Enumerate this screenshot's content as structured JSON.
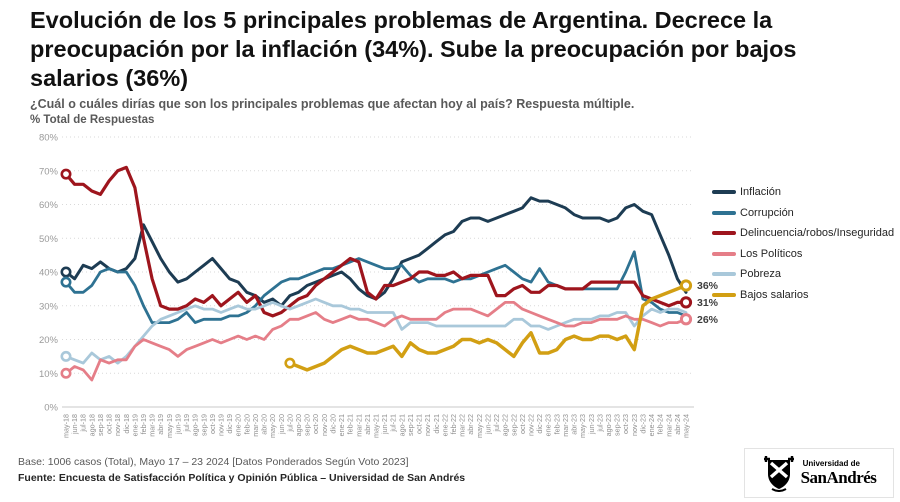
{
  "header": {
    "title": "Evolución de los 5 principales problemas de Argentina. Decrece la preocupación por la inflación (34%). Sube la preocupación por bajos salarios (36%)",
    "subtitle": "¿Cuál o cuáles dirías que son los principales problemas que afectan hoy al país? Respuesta múltiple.",
    "axis_note": "% Total de Respuestas"
  },
  "chart_data": {
    "type": "line",
    "ylim": [
      0,
      80
    ],
    "yticks": [
      "0%",
      "10%",
      "20%",
      "30%",
      "40%",
      "50%",
      "60%",
      "70%",
      "80%"
    ],
    "grid": "dotted-horizontal",
    "legend_position": "right",
    "x": [
      "may-18",
      "jun-18",
      "jul-18",
      "ago-18",
      "sep-18",
      "oct-18",
      "nov-18",
      "dic-18",
      "ene-19",
      "feb-19",
      "mar-19",
      "abr-19",
      "may-19",
      "jun-19",
      "jul-19",
      "ago-19",
      "sep-19",
      "oct-19",
      "nov-19",
      "dic-19",
      "ene-20",
      "feb-20",
      "mar-20",
      "abr-20",
      "may-20",
      "jun-20",
      "jul-20",
      "ago-20",
      "sep-20",
      "oct-20",
      "nov-20",
      "dic-20",
      "ene-21",
      "feb-21",
      "mar-21",
      "abr-21",
      "may-21",
      "jun-21",
      "jul-21",
      "ago-21",
      "sep-21",
      "oct-21",
      "nov-21",
      "dic-21",
      "ene-22",
      "feb-22",
      "mar-22",
      "abr-22",
      "may-22",
      "jun-22",
      "jul-22",
      "ago-22",
      "sep-22",
      "oct-22",
      "nov-22",
      "dic-22",
      "ene-23",
      "feb-23",
      "mar-23",
      "abr-23",
      "may-23",
      "jun-23",
      "jul-23",
      "ago-23",
      "sep-23",
      "oct-23",
      "nov-23",
      "dic-23",
      "ene-24",
      "feb-24",
      "mar-24",
      "abr-24",
      "may-24"
    ],
    "series": [
      {
        "name": "Inflación",
        "color": "#1d3c53",
        "width": 3,
        "values": [
          40,
          38,
          42,
          41,
          43,
          41,
          40,
          41,
          44,
          54,
          49,
          44,
          40,
          37,
          38,
          40,
          42,
          44,
          41,
          38,
          37,
          34,
          33,
          31,
          32,
          30,
          33,
          34,
          36,
          37,
          38,
          39,
          40,
          38,
          35,
          33,
          32,
          34,
          38,
          43,
          44,
          45,
          47,
          49,
          51,
          52,
          55,
          56,
          56,
          55,
          56,
          57,
          58,
          59,
          62,
          61,
          61,
          60,
          59,
          57,
          56,
          56,
          56,
          55,
          56,
          59,
          60,
          58,
          57,
          51,
          45,
          38,
          34
        ],
        "start_marker": true,
        "end_label": null
      },
      {
        "name": "Corrupción",
        "color": "#2e7292",
        "width": 2.8,
        "values": [
          37,
          34,
          34,
          36,
          40,
          41,
          40,
          40,
          36,
          30,
          25,
          25,
          25,
          26,
          28,
          25,
          26,
          26,
          26,
          27,
          27,
          28,
          30,
          33,
          35,
          37,
          38,
          38,
          39,
          40,
          41,
          41,
          42,
          43,
          44,
          43,
          42,
          41,
          41,
          42,
          39,
          37,
          38,
          38,
          38,
          37,
          38,
          38,
          39,
          40,
          41,
          42,
          40,
          38,
          37,
          41,
          37,
          36,
          35,
          35,
          35,
          35,
          35,
          35,
          35,
          40,
          46,
          32,
          31,
          29,
          28,
          28,
          27
        ],
        "start_marker": true,
        "end_label": null
      },
      {
        "name": "Delincuencia/robos/Inseguridad",
        "color": "#9e151d",
        "width": 3.2,
        "values": [
          69,
          66,
          66,
          64,
          63,
          67,
          70,
          71,
          65,
          50,
          38,
          30,
          29,
          29,
          30,
          32,
          31,
          33,
          30,
          32,
          34,
          31,
          33,
          28,
          27,
          28,
          30,
          32,
          33,
          36,
          38,
          40,
          42,
          44,
          43,
          34,
          32,
          36,
          36,
          37,
          38,
          40,
          40,
          39,
          39,
          40,
          38,
          39,
          39,
          39,
          33,
          33,
          35,
          36,
          34,
          34,
          36,
          36,
          35,
          35,
          35,
          37,
          37,
          37,
          37,
          37,
          37,
          33,
          32,
          31,
          30,
          31,
          31
        ],
        "start_marker": true,
        "end_label": "31%"
      },
      {
        "name": "Pobreza",
        "color": "#a9c8da",
        "width": 2.8,
        "values": [
          15,
          14,
          13,
          16,
          14,
          15,
          13,
          15,
          18,
          21,
          24,
          26,
          27,
          28,
          29,
          30,
          29,
          29,
          28,
          29,
          30,
          29,
          29,
          30,
          31,
          30,
          29,
          30,
          31,
          32,
          31,
          30,
          30,
          29,
          29,
          28,
          28,
          28,
          28,
          23,
          25,
          25,
          25,
          24,
          24,
          24,
          24,
          24,
          24,
          24,
          24,
          24,
          26,
          26,
          24,
          24,
          23,
          24,
          25,
          26,
          26,
          26,
          27,
          27,
          28,
          28,
          24,
          27,
          29,
          28,
          29,
          29,
          28
        ],
        "start_marker": true,
        "end_label": null
      },
      {
        "name": "Los Políticos",
        "color": "#e57e88",
        "width": 2.8,
        "values": [
          10,
          12,
          11,
          8,
          14,
          13,
          14,
          14,
          18,
          20,
          19,
          18,
          17,
          15,
          17,
          18,
          19,
          20,
          19,
          20,
          21,
          20,
          21,
          20,
          23,
          24,
          26,
          26,
          27,
          28,
          26,
          25,
          26,
          27,
          26,
          26,
          25,
          24,
          26,
          27,
          26,
          26,
          26,
          26,
          28,
          29,
          29,
          29,
          28,
          27,
          29,
          31,
          31,
          29,
          28,
          27,
          26,
          25,
          24,
          24,
          25,
          25,
          26,
          26,
          26,
          27,
          26,
          26,
          25,
          24,
          25,
          25,
          26
        ],
        "start_marker": true,
        "end_label": "26%"
      },
      {
        "name": "Bajos salarios",
        "color": "#d29f13",
        "width": 3.5,
        "values": [
          null,
          null,
          null,
          null,
          null,
          null,
          null,
          null,
          null,
          null,
          null,
          null,
          null,
          null,
          null,
          null,
          null,
          null,
          null,
          null,
          null,
          null,
          null,
          null,
          null,
          null,
          13,
          12,
          11,
          12,
          13,
          15,
          17,
          18,
          17,
          16,
          16,
          17,
          18,
          15,
          19,
          17,
          16,
          16,
          17,
          18,
          20,
          20,
          19,
          20,
          19,
          17,
          15,
          19,
          22,
          16,
          16,
          17,
          20,
          21,
          20,
          20,
          21,
          21,
          20,
          21,
          17,
          30,
          32,
          33,
          34,
          35,
          36
        ],
        "start_marker": true,
        "end_label": "36%"
      }
    ],
    "legend_order": [
      "Inflación",
      "Corrupción",
      "Delincuencia/robos/Inseguridad",
      "Los Políticos",
      "Pobreza",
      "Bajos salarios"
    ],
    "end_labels_visible": [
      "36%",
      "31%",
      "26%"
    ]
  },
  "footer": {
    "base": "Base: 1006 casos (Total), Mayo 17 – 23 2024 [Datos Ponderados Según Voto 2023]",
    "source": "Fuente: Encuesta de Satisfacción Política y Opinión Pública – Universidad de San Andrés"
  },
  "logo": {
    "line1": "Universidad de",
    "line2": "SanAndrés"
  },
  "colors": {
    "grid": "#d9d9d9",
    "axis_labels": "#8f8f8f",
    "end_label_text": "#3d3d3d"
  }
}
